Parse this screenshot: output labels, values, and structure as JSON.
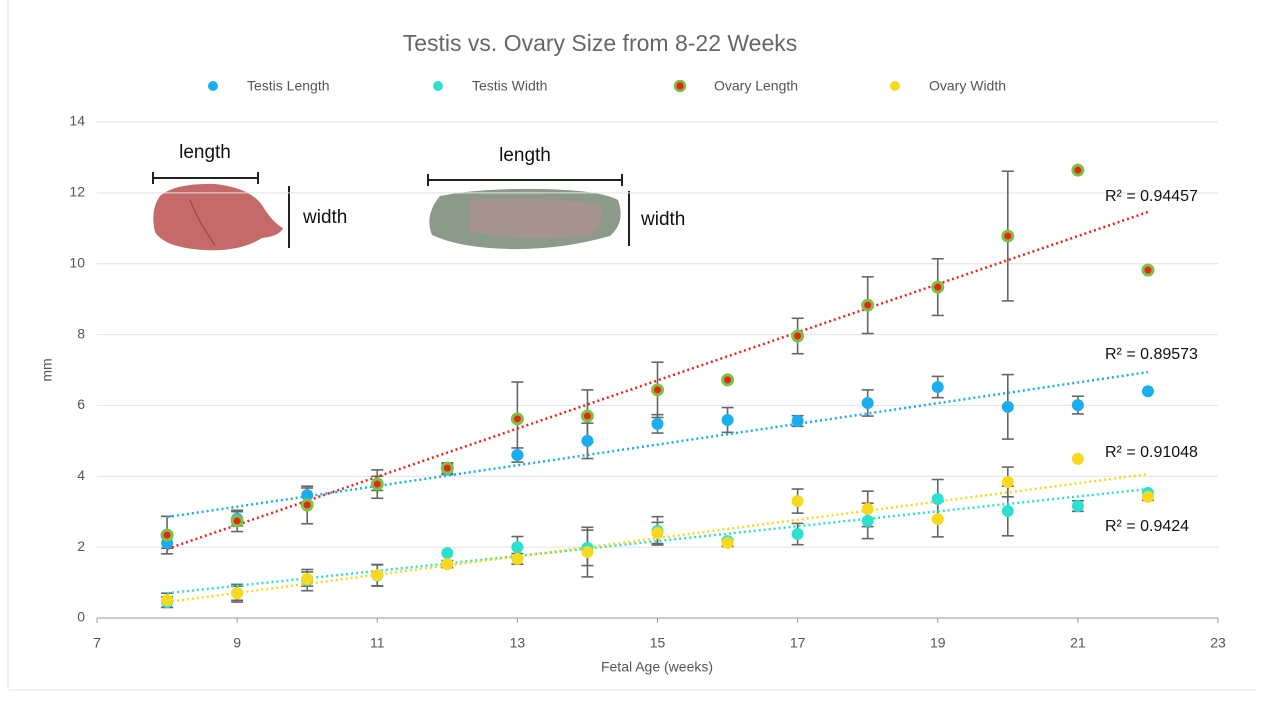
{
  "chart_data": {
    "type": "scatter",
    "title": "Testis vs. Ovary Size from 8-22 Weeks",
    "x_label": "Fetal Age (weeks)",
    "y_label": "mm",
    "x": [
      8,
      9,
      10,
      11,
      12,
      13,
      14,
      15,
      16,
      17,
      18,
      19,
      20,
      21,
      22
    ],
    "xlim": [
      7,
      23
    ],
    "xticks": [
      7,
      9,
      11,
      13,
      15,
      17,
      19,
      21,
      23
    ],
    "ylim": [
      0,
      14
    ],
    "yticks": [
      0,
      2,
      4,
      6,
      8,
      10,
      12,
      14
    ],
    "grid": true,
    "legend": "top",
    "trendline_x": [
      8,
      22
    ],
    "series": [
      {
        "name": "Testis Length",
        "color": "#1aaef0",
        "values": [
          2.12,
          2.8,
          3.47,
          3.8,
          4.2,
          4.6,
          5.0,
          5.48,
          5.59,
          5.56,
          6.07,
          6.52,
          5.96,
          6.01,
          6.4
        ],
        "errors": [
          0.15,
          0.2,
          0.2,
          0.2,
          0.15,
          0.2,
          0.5,
          0.26,
          0.35,
          0.15,
          0.37,
          0.3,
          0.91,
          0.25,
          null
        ],
        "trendline": [
          2.85,
          6.94
        ],
        "r2_label": "R² = 0.89573"
      },
      {
        "name": "Testis Width",
        "color": "#2ee0d0",
        "values": [
          0.45,
          0.7,
          1.07,
          1.2,
          1.83,
          2.0,
          1.98,
          2.46,
          2.17,
          2.37,
          2.74,
          3.36,
          3.02,
          3.16,
          3.53
        ],
        "errors": [
          0.15,
          0.2,
          0.3,
          0.3,
          null,
          0.3,
          0.5,
          0.4,
          null,
          0.3,
          0.5,
          0.55,
          0.7,
          0.15,
          null
        ],
        "trendline": [
          0.7,
          3.64
        ],
        "r2_label": "R² = 0.9424"
      },
      {
        "name": "Ovary Length",
        "color": "#e5261a",
        "edge_color": "#7dc242",
        "values": [
          2.34,
          2.74,
          3.19,
          3.78,
          4.23,
          5.62,
          5.7,
          6.44,
          6.72,
          7.96,
          8.83,
          9.34,
          10.78,
          12.64,
          9.82
        ],
        "errors": [
          0.53,
          0.3,
          0.53,
          0.4,
          0.15,
          1.04,
          0.74,
          0.78,
          null,
          0.5,
          0.8,
          0.8,
          1.83,
          null,
          null
        ],
        "trendline": [
          1.95,
          11.46
        ],
        "r2_label": "R² = 0.94457"
      },
      {
        "name": "Ovary Width",
        "color": "#f8d820",
        "values": [
          0.5,
          0.7,
          1.1,
          1.21,
          1.52,
          1.67,
          1.86,
          2.4,
          2.12,
          3.3,
          3.08,
          2.79,
          3.84,
          4.49,
          3.42
        ],
        "errors": [
          0.2,
          0.25,
          0.2,
          0.3,
          0.1,
          0.15,
          0.7,
          0.3,
          0.1,
          0.34,
          0.5,
          0.5,
          0.42,
          null,
          0.1
        ],
        "trendline": [
          0.45,
          4.06
        ],
        "r2_label": "R² = 0.91048"
      }
    ],
    "illustrations": [
      {
        "length_label": "length",
        "width_label": "width"
      },
      {
        "length_label": "length",
        "width_label": "width"
      }
    ]
  }
}
